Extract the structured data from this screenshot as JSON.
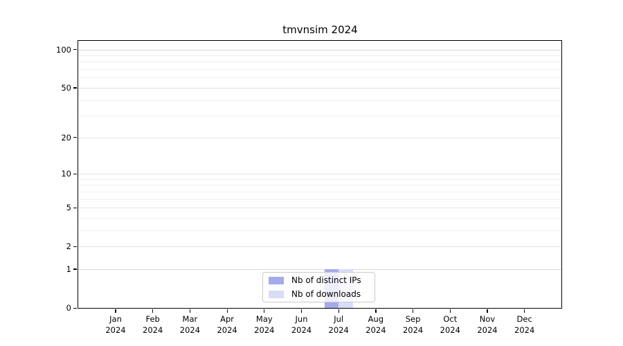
{
  "title": "tmvnsim 2024",
  "chart_data": {
    "type": "bar",
    "title": "tmvnsim 2024",
    "categories": [
      "Jan",
      "Feb",
      "Mar",
      "Apr",
      "May",
      "Jun",
      "Jul",
      "Aug",
      "Sep",
      "Oct",
      "Nov",
      "Dec"
    ],
    "year_label": "2024",
    "series": [
      {
        "name": "Nb of distinct IPs",
        "color": "#a5aaec",
        "values": [
          0,
          0,
          0,
          0,
          0,
          0,
          1,
          0,
          0,
          0,
          0,
          0
        ]
      },
      {
        "name": "Nb of downloads",
        "color": "#d9dcf7",
        "values": [
          0,
          0,
          0,
          0,
          0,
          0,
          1,
          0,
          0,
          0,
          0,
          0
        ]
      }
    ],
    "y_ticks": [
      0,
      1,
      2,
      5,
      10,
      20,
      50,
      100
    ],
    "y_scale": "log10(1+y)",
    "ylim": [
      0,
      117
    ],
    "grid_values": [
      1,
      2,
      3,
      4,
      5,
      6,
      7,
      8,
      9,
      10,
      20,
      30,
      40,
      50,
      60,
      70,
      80,
      90,
      100
    ],
    "grid": true,
    "legend_position": "bottom-center",
    "colors": {
      "axis": "#000000",
      "grid_minor": "#f0f0f0",
      "grid_tick": "#e3e3e3",
      "grid_major": "#d6d6d6",
      "background": "#ffffff"
    }
  }
}
